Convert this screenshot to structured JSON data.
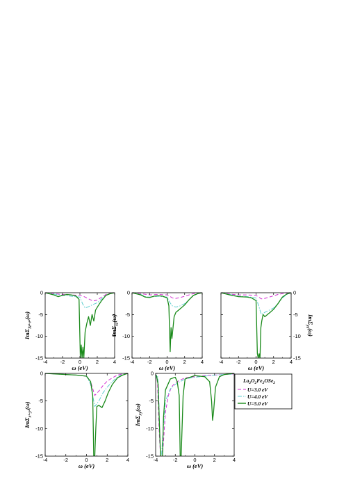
{
  "colors": {
    "U3": "#d32fd3",
    "U4": "#5ecfd0",
    "U5": "#1a8a1a",
    "axis": "#000000"
  },
  "legend": {
    "title": "La2O2Fe2OSe2",
    "entries": [
      "U=3.0 eV",
      "U=4.0 eV",
      "U=5.0 eV"
    ]
  },
  "chart_data": [
    {
      "type": "line",
      "id": "p1",
      "ylabel": "ImΣ3z²-r²(ω)",
      "xlabel": "ω (eV)",
      "xlim": [
        -4,
        4
      ],
      "ylim": [
        -15,
        0
      ],
      "xticks": [
        "-4",
        "-2",
        "0",
        "2",
        "4"
      ],
      "yticks": [
        "-15",
        "-10",
        "-5",
        "0"
      ],
      "series": [
        {
          "name": "U=3.0 eV",
          "x": [
            -4,
            -3,
            -2,
            -1,
            0,
            0.5,
            1,
            1.5,
            2,
            2.5,
            3,
            3.5,
            4
          ],
          "y": [
            0,
            -0.2,
            -0.4,
            -0.5,
            -0.6,
            -0.9,
            -1.4,
            -1.9,
            -1.7,
            -1.0,
            -0.4,
            -0.1,
            0
          ]
        },
        {
          "name": "U=4.0 eV",
          "x": [
            -4,
            -3,
            -2,
            -1,
            0,
            0.3,
            0.6,
            1,
            1.5,
            2,
            2.5,
            3,
            3.5,
            4
          ],
          "y": [
            0,
            -0.3,
            -0.6,
            -0.8,
            -1,
            -2.5,
            -3.5,
            -3.2,
            -2.7,
            -2.3,
            -1.4,
            -0.6,
            -0.2,
            0
          ]
        },
        {
          "name": "U=5.0 eV",
          "x": [
            -4,
            -3,
            -2.5,
            -2,
            -1.5,
            -1,
            -0.5,
            -0.1,
            0.05,
            0.15,
            0.25,
            0.35,
            0.45,
            0.6,
            0.8,
            1.0,
            1.2,
            1.4,
            1.6,
            1.8,
            2.1,
            2.5,
            3,
            3.5,
            4
          ],
          "y": [
            0,
            -0.5,
            -0.9,
            -0.6,
            -0.4,
            -0.5,
            -0.7,
            -1.5,
            -15,
            -12,
            -15,
            -12.5,
            -15,
            -9,
            -7,
            -5.5,
            -7.5,
            -5,
            -6.5,
            -4,
            -3,
            -1.8,
            -0.6,
            -0.2,
            0
          ]
        }
      ]
    },
    {
      "type": "line",
      "id": "p2",
      "ylabel": "ImΣxz(ω)",
      "xlabel": "ω (eV)",
      "xlim": [
        -4,
        4
      ],
      "ylim": [
        -15,
        0
      ],
      "xticks": [
        "-4",
        "-2",
        "0",
        "2",
        "4"
      ],
      "yticks": [
        "-15",
        "-10",
        "-5",
        "0"
      ],
      "series": [
        {
          "name": "U=3.0 eV",
          "x": [
            -4,
            -3,
            -2,
            -1,
            0,
            0.3,
            0.6,
            1,
            1.5,
            2,
            2.5,
            3,
            3.5,
            4
          ],
          "y": [
            0,
            -0.2,
            -0.5,
            -0.4,
            -0.5,
            -0.8,
            -1.2,
            -1.3,
            -1.1,
            -0.8,
            -0.5,
            -0.2,
            -0.1,
            0
          ]
        },
        {
          "name": "U=4.0 eV",
          "x": [
            -4,
            -3,
            -2.5,
            -2,
            -1,
            0,
            0.3,
            0.6,
            1,
            1.5,
            2,
            2.5,
            3,
            3.5,
            4
          ],
          "y": [
            0,
            -0.4,
            -0.9,
            -1.0,
            -0.8,
            -1.0,
            -2.2,
            -3,
            -3.3,
            -3.0,
            -2.5,
            -1.6,
            -0.7,
            -0.2,
            0
          ]
        },
        {
          "name": "U=5.0 eV",
          "x": [
            -4,
            -3,
            -2.5,
            -2,
            -1.5,
            -1,
            -0.5,
            0,
            0.2,
            0.35,
            0.45,
            0.55,
            0.65,
            0.8,
            1.0,
            1.3,
            1.6,
            2,
            2.5,
            3,
            3.5,
            4
          ],
          "y": [
            0,
            -0.5,
            -1.0,
            -1.1,
            -0.8,
            -0.7,
            -0.8,
            -1.2,
            -3,
            -13.5,
            -8,
            -10.5,
            -8.5,
            -5.5,
            -4.5,
            -4,
            -3.5,
            -2.8,
            -1.6,
            -0.6,
            -0.2,
            0
          ]
        }
      ]
    },
    {
      "type": "line",
      "id": "p3",
      "ylabel": "ImΣyz(ω)",
      "xlabel": "ω (eV)",
      "xlim": [
        -4,
        4
      ],
      "ylim": [
        -15,
        0
      ],
      "xticks": [
        "-4",
        "-2",
        "0",
        "2",
        "4"
      ],
      "yticks": [
        "-15",
        "-10",
        "-5",
        "0"
      ],
      "series": [
        {
          "name": "U=3.0 eV",
          "x": [
            -4,
            -3,
            -2,
            -1,
            0,
            0.3,
            0.6,
            1,
            1.5,
            2,
            2.5,
            3,
            3.5,
            4
          ],
          "y": [
            0,
            -0.3,
            -0.5,
            -0.5,
            -0.6,
            -1.0,
            -1.4,
            -1.3,
            -1.0,
            -0.7,
            -0.4,
            -0.2,
            -0.1,
            0
          ]
        },
        {
          "name": "U=4.0 eV",
          "x": [
            -4,
            -3,
            -2,
            -1,
            0,
            0.3,
            0.6,
            1,
            1.5,
            2,
            2.5,
            3,
            3.5,
            4
          ],
          "y": [
            0,
            -0.4,
            -0.8,
            -0.9,
            -1.2,
            -3.0,
            -5,
            -4.5,
            -4,
            -3.5,
            -2.5,
            -1.2,
            -0.4,
            0
          ]
        },
        {
          "name": "U=5.0 eV",
          "x": [
            -4,
            -3,
            -2,
            -1,
            -0.5,
            0,
            0.15,
            0.25,
            0.35,
            0.45,
            0.55,
            0.65,
            0.8,
            1.0,
            1.3,
            1.6,
            2,
            2.5,
            3,
            3.5,
            4
          ],
          "y": [
            0,
            -0.5,
            -0.9,
            -1.0,
            -1.2,
            -1.8,
            -14,
            -15,
            -14,
            -15,
            -8,
            -6.5,
            -5,
            -5.5,
            -5,
            -4.5,
            -3.8,
            -2.5,
            -1.0,
            -0.3,
            0
          ]
        }
      ]
    },
    {
      "type": "line",
      "id": "p4",
      "ylabel": "ImΣx²-y²(ω)",
      "xlabel": "ω (eV)",
      "xlim": [
        -4,
        4
      ],
      "ylim": [
        -15,
        0
      ],
      "xticks": [
        "-4",
        "-2",
        "0",
        "2",
        "4"
      ],
      "yticks": [
        "-15",
        "-10",
        "-5",
        "0"
      ],
      "series": [
        {
          "name": "U=3.0 eV",
          "x": [
            -4,
            -3,
            -2,
            -1,
            0,
            0.4,
            0.8,
            1.2,
            1.6,
            2,
            2.5,
            3,
            3.5,
            4
          ],
          "y": [
            0,
            -0.1,
            -0.2,
            -0.3,
            -0.5,
            -1.5,
            -4,
            -3.2,
            -2.2,
            -1.4,
            -0.8,
            -0.3,
            -0.1,
            0
          ]
        },
        {
          "name": "U=4.0 eV",
          "x": [
            -4,
            -3,
            -2,
            -1,
            0,
            0.4,
            0.8,
            1.2,
            1.6,
            2,
            2.5,
            3,
            3.5,
            4
          ],
          "y": [
            0,
            -0.1,
            -0.2,
            -0.3,
            -0.5,
            -2.0,
            -6,
            -5.0,
            -3.5,
            -2.5,
            -1.5,
            -0.6,
            -0.2,
            0
          ]
        },
        {
          "name": "U=5.0 eV",
          "x": [
            -4,
            -3,
            -2,
            -1,
            0,
            0.4,
            0.6,
            0.7,
            0.8,
            0.9,
            1.0,
            1.2,
            1.5,
            1.8,
            2.1,
            2.5,
            3,
            3.5,
            4
          ],
          "y": [
            0,
            -0.1,
            -0.2,
            -0.3,
            -0.5,
            -1.5,
            -4,
            -15,
            -15,
            -10,
            -6,
            -5.8,
            -6.2,
            -5,
            -3.5,
            -2,
            -0.8,
            -0.3,
            0
          ]
        }
      ]
    },
    {
      "type": "line",
      "id": "p5",
      "ylabel": "ImΣxy(ω)",
      "xlabel": "ω (eV)",
      "xlim": [
        -4,
        4
      ],
      "ylim": [
        -15,
        0
      ],
      "xticks": [
        "-4",
        "-2",
        "0",
        "2",
        "4"
      ],
      "yticks": [
        "-15",
        "-10",
        "-5",
        "0"
      ],
      "series": [
        {
          "name": "U=3.0 eV",
          "x": [
            -4,
            -3.9,
            -3.8,
            -3.7,
            -3.6,
            -3.5,
            -3.3,
            -3.0,
            -2.7,
            -2.4,
            -2,
            -1.5,
            -1,
            0,
            1,
            2,
            3,
            4
          ],
          "y": [
            -1,
            -0.5,
            -2,
            -8,
            -12,
            -15,
            -15,
            -7,
            -4,
            -2.5,
            -1.7,
            -1.2,
            -0.8,
            -0.6,
            -0.4,
            -0.3,
            -0.2,
            -0.1
          ]
        },
        {
          "name": "U=4.0 eV",
          "x": [
            -4,
            -3.9,
            -3.8,
            -3.7,
            -3.6,
            -3.5,
            -3.4,
            -3.3,
            -3.0,
            -2.5,
            -2,
            -1.5,
            -1,
            0,
            1,
            2,
            3,
            4
          ],
          "y": [
            -1,
            -0.3,
            -0.5,
            -3,
            -10,
            -15,
            -15,
            -12,
            -5,
            -2.8,
            -2,
            -1.5,
            -1,
            -0.7,
            -0.5,
            -0.3,
            -0.2,
            -0.1
          ]
        },
        {
          "name": "U=5.0 eV",
          "x": [
            -4,
            -3.9,
            -3.75,
            -3.6,
            -3.5,
            -3.4,
            -3.3,
            -3.2,
            -3.0,
            -2.5,
            -2,
            -1.8,
            -1.6,
            -1.5,
            -1.4,
            -1.2,
            -1,
            0,
            1,
            1.5,
            1.7,
            1.8,
            1.9,
            2.1,
            2.5,
            3,
            4
          ],
          "y": [
            -0.3,
            -0.5,
            -2,
            -10,
            -15,
            -15,
            -15,
            -8,
            -3,
            -1,
            -0.7,
            -1.5,
            -4,
            -15,
            -15,
            -4,
            -1,
            -0.4,
            -0.6,
            -1.5,
            -5,
            -8.5,
            -7,
            -2.5,
            -0.6,
            -0.2,
            0
          ]
        }
      ]
    }
  ]
}
